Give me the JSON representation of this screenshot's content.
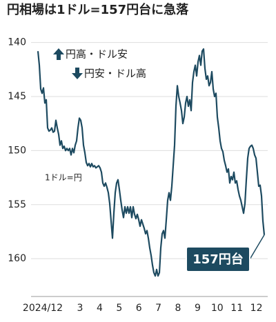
{
  "chart_data": {
    "type": "line",
    "title": "円相場は1ドル=157円台に急落",
    "x_labels": [
      "2024/12",
      "3",
      "4",
      "5",
      "6",
      "7",
      "8",
      "9",
      "10",
      "11",
      "12"
    ],
    "values": [
      140.8,
      142.1,
      144.3,
      144.7,
      144.2,
      145.6,
      145.3,
      147.9,
      148.2,
      148.1,
      147.9,
      148.3,
      148.2,
      147.2,
      147.9,
      148.5,
      149.5,
      149.1,
      149.8,
      149.6,
      150.0,
      149.8,
      150.0,
      149.8,
      150.4,
      149.8,
      150.2,
      149.5,
      149.1,
      147.9,
      147.0,
      147.2,
      147.9,
      149.5,
      150.2,
      151.1,
      151.4,
      151.2,
      151.5,
      151.2,
      151.5,
      151.4,
      151.6,
      151.5,
      151.4,
      151.6,
      152.0,
      153.0,
      153.3,
      153.0,
      153.4,
      153.9,
      154.9,
      156.5,
      158.1,
      155.8,
      153.9,
      153.0,
      152.7,
      153.6,
      154.6,
      155.5,
      156.2,
      155.2,
      155.8,
      155.2,
      155.8,
      155.2,
      156.2,
      155.2,
      155.9,
      156.3,
      155.9,
      156.4,
      157.0,
      156.4,
      156.8,
      157.2,
      157.7,
      157.4,
      158.1,
      159.0,
      159.7,
      160.6,
      161.3,
      161.6,
      161.0,
      161.6,
      161.3,
      159.0,
      157.7,
      157.4,
      158.1,
      156.4,
      154.6,
      153.9,
      154.6,
      153.3,
      151.4,
      149.5,
      145.9,
      144.0,
      145.0,
      145.6,
      146.3,
      147.5,
      146.9,
      145.6,
      145.0,
      145.9,
      145.3,
      146.3,
      143.7,
      142.7,
      142.1,
      143.1,
      141.8,
      141.2,
      142.1,
      140.8,
      140.6,
      142.4,
      143.4,
      143.1,
      144.0,
      143.7,
      142.7,
      144.3,
      145.0,
      144.7,
      146.9,
      147.9,
      149.1,
      149.8,
      150.1,
      150.9,
      151.4,
      152.0,
      151.7,
      153.0,
      152.4,
      152.7,
      152.0,
      153.0,
      152.8,
      153.6,
      154.2,
      154.6,
      155.2,
      155.8,
      154.9,
      152.7,
      150.7,
      149.8,
      149.6,
      149.5,
      149.8,
      150.4,
      150.7,
      152.0,
      153.3,
      153.2,
      154.2,
      156.5,
      157.8
    ],
    "color": "#1d4a60",
    "ylim": [
      138.3,
      163.5
    ],
    "invert_y": true,
    "yticks": [
      140,
      145,
      150,
      155,
      160
    ],
    "grid": true,
    "annotations": [
      "円高・ドル安",
      "円安・ドル高",
      "1ドル=円"
    ],
    "callout": "157円台"
  }
}
